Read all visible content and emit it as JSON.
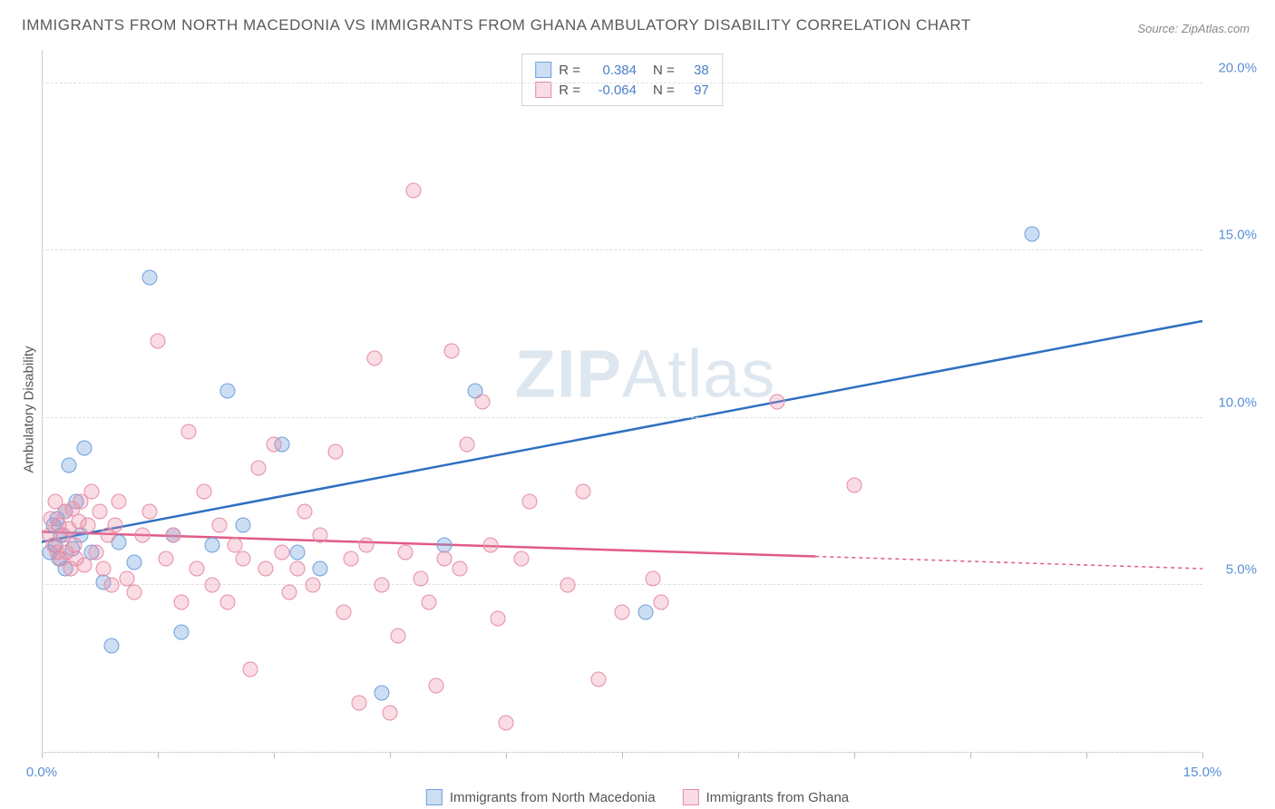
{
  "title": "IMMIGRANTS FROM NORTH MACEDONIA VS IMMIGRANTS FROM GHANA AMBULATORY DISABILITY CORRELATION CHART",
  "source": "Source: ZipAtlas.com",
  "y_axis_label": "Ambulatory Disability",
  "watermark_bold": "ZIP",
  "watermark_light": "Atlas",
  "chart": {
    "type": "scatter",
    "xlim": [
      0,
      15
    ],
    "ylim": [
      0,
      21
    ],
    "x_ticks": [
      0,
      1.5,
      3,
      4.5,
      6,
      7.5,
      9,
      10.5,
      12,
      13.5,
      15
    ],
    "x_tick_labels": {
      "0": "0.0%",
      "15": "15.0%"
    },
    "y_gridlines": [
      0,
      5,
      10,
      15,
      20
    ],
    "y_tick_labels": {
      "5": "5.0%",
      "10": "10.0%",
      "15": "15.0%",
      "20": "20.0%"
    },
    "background_color": "#ffffff",
    "grid_color": "#e0e0e0",
    "axis_color": "#cccccc",
    "tick_label_color": "#5a8fd6",
    "series": [
      {
        "name": "Immigrants from North Macedonia",
        "key": "blue",
        "color_fill": "rgba(110,160,220,0.35)",
        "color_stroke": "#6ea0dc",
        "r_value": "0.384",
        "n_value": "38",
        "trendline": {
          "x1": 0,
          "y1": 6.3,
          "x2": 15,
          "y2": 12.9,
          "color": "#2f6fc2",
          "width": 2.5,
          "dash_from_x": null
        },
        "points": [
          [
            0.1,
            6.0
          ],
          [
            0.15,
            6.8
          ],
          [
            0.18,
            6.2
          ],
          [
            0.2,
            7.0
          ],
          [
            0.22,
            5.8
          ],
          [
            0.25,
            6.5
          ],
          [
            0.3,
            7.2
          ],
          [
            0.3,
            5.5
          ],
          [
            0.35,
            8.6
          ],
          [
            0.4,
            6.1
          ],
          [
            0.45,
            7.5
          ],
          [
            0.5,
            6.5
          ],
          [
            0.55,
            9.1
          ],
          [
            0.65,
            6.0
          ],
          [
            0.8,
            5.1
          ],
          [
            0.9,
            3.2
          ],
          [
            1.0,
            6.3
          ],
          [
            1.2,
            5.7
          ],
          [
            1.4,
            14.2
          ],
          [
            1.7,
            6.5
          ],
          [
            1.8,
            3.6
          ],
          [
            2.2,
            6.2
          ],
          [
            2.4,
            10.8
          ],
          [
            2.6,
            6.8
          ],
          [
            3.1,
            9.2
          ],
          [
            3.3,
            6.0
          ],
          [
            3.6,
            5.5
          ],
          [
            4.4,
            1.8
          ],
          [
            5.2,
            6.2
          ],
          [
            5.6,
            10.8
          ],
          [
            7.8,
            4.2
          ],
          [
            12.8,
            15.5
          ]
        ]
      },
      {
        "name": "Immigrants from Ghana",
        "key": "pink",
        "color_fill": "rgba(235,140,165,0.3)",
        "color_stroke": "#e88ca5",
        "r_value": "-0.064",
        "n_value": "97",
        "trendline": {
          "x1": 0,
          "y1": 6.6,
          "x2": 15,
          "y2": 5.5,
          "color": "#e25a85",
          "width": 2.5,
          "dash_from_x": 10
        },
        "points": [
          [
            0.1,
            6.5
          ],
          [
            0.12,
            7.0
          ],
          [
            0.15,
            6.2
          ],
          [
            0.18,
            7.5
          ],
          [
            0.2,
            6.0
          ],
          [
            0.22,
            6.8
          ],
          [
            0.25,
            5.8
          ],
          [
            0.28,
            6.5
          ],
          [
            0.3,
            7.2
          ],
          [
            0.32,
            6.0
          ],
          [
            0.35,
            6.7
          ],
          [
            0.38,
            5.5
          ],
          [
            0.4,
            7.3
          ],
          [
            0.42,
            6.2
          ],
          [
            0.45,
            5.8
          ],
          [
            0.48,
            6.9
          ],
          [
            0.5,
            7.5
          ],
          [
            0.55,
            5.6
          ],
          [
            0.6,
            6.8
          ],
          [
            0.65,
            7.8
          ],
          [
            0.7,
            6.0
          ],
          [
            0.75,
            7.2
          ],
          [
            0.8,
            5.5
          ],
          [
            0.85,
            6.5
          ],
          [
            0.9,
            5.0
          ],
          [
            0.95,
            6.8
          ],
          [
            1.0,
            7.5
          ],
          [
            1.1,
            5.2
          ],
          [
            1.2,
            4.8
          ],
          [
            1.3,
            6.5
          ],
          [
            1.4,
            7.2
          ],
          [
            1.5,
            12.3
          ],
          [
            1.6,
            5.8
          ],
          [
            1.7,
            6.5
          ],
          [
            1.8,
            4.5
          ],
          [
            1.9,
            9.6
          ],
          [
            2.0,
            5.5
          ],
          [
            2.1,
            7.8
          ],
          [
            2.2,
            5.0
          ],
          [
            2.3,
            6.8
          ],
          [
            2.4,
            4.5
          ],
          [
            2.5,
            6.2
          ],
          [
            2.6,
            5.8
          ],
          [
            2.7,
            2.5
          ],
          [
            2.8,
            8.5
          ],
          [
            2.9,
            5.5
          ],
          [
            3.0,
            9.2
          ],
          [
            3.1,
            6.0
          ],
          [
            3.2,
            4.8
          ],
          [
            3.3,
            5.5
          ],
          [
            3.4,
            7.2
          ],
          [
            3.5,
            5.0
          ],
          [
            3.6,
            6.5
          ],
          [
            3.8,
            9.0
          ],
          [
            3.9,
            4.2
          ],
          [
            4.0,
            5.8
          ],
          [
            4.1,
            1.5
          ],
          [
            4.2,
            6.2
          ],
          [
            4.3,
            11.8
          ],
          [
            4.4,
            5.0
          ],
          [
            4.5,
            1.2
          ],
          [
            4.6,
            3.5
          ],
          [
            4.7,
            6.0
          ],
          [
            4.8,
            16.8
          ],
          [
            4.9,
            5.2
          ],
          [
            5.0,
            4.5
          ],
          [
            5.1,
            2.0
          ],
          [
            5.2,
            5.8
          ],
          [
            5.3,
            12.0
          ],
          [
            5.4,
            5.5
          ],
          [
            5.5,
            9.2
          ],
          [
            5.7,
            10.5
          ],
          [
            5.8,
            6.2
          ],
          [
            5.9,
            4.0
          ],
          [
            6.0,
            0.9
          ],
          [
            6.2,
            5.8
          ],
          [
            6.3,
            7.5
          ],
          [
            6.8,
            5.0
          ],
          [
            7.0,
            7.8
          ],
          [
            7.2,
            2.2
          ],
          [
            7.5,
            4.2
          ],
          [
            7.9,
            5.2
          ],
          [
            8.0,
            4.5
          ],
          [
            9.5,
            10.5
          ],
          [
            10.5,
            8.0
          ]
        ]
      }
    ]
  },
  "legend": {
    "r_label": "R =",
    "n_label": "N ="
  },
  "bottom_legend": [
    {
      "key": "blue",
      "label": "Immigrants from North Macedonia"
    },
    {
      "key": "pink",
      "label": "Immigrants from Ghana"
    }
  ]
}
